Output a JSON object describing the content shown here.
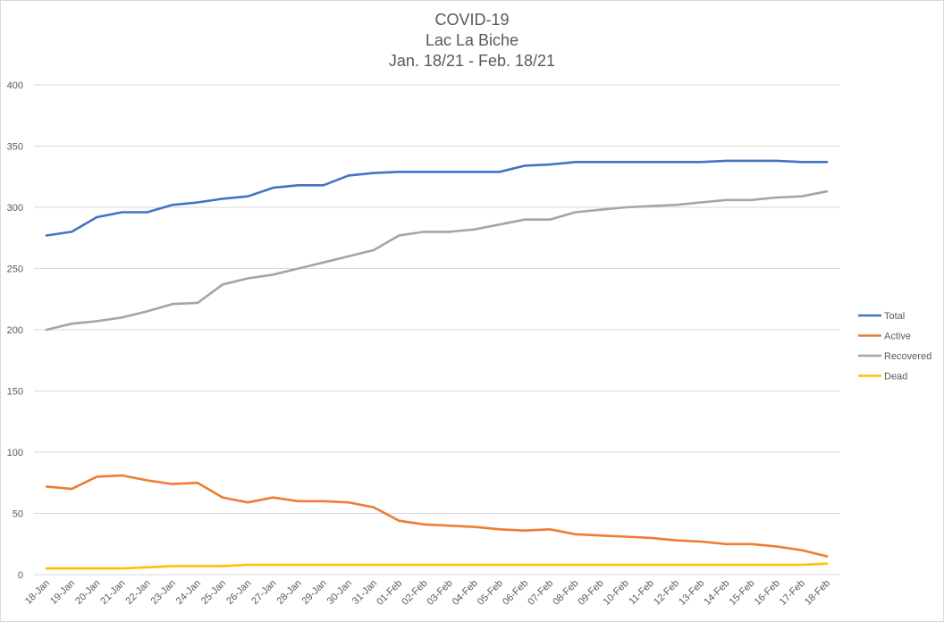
{
  "chart_data": {
    "type": "line",
    "title": [
      "COVID-19",
      "Lac La Biche",
      "Jan. 18/21 - Feb. 18/21"
    ],
    "xlabel": "",
    "ylabel": "",
    "ylim": [
      0,
      400
    ],
    "yticks": [
      "0",
      "50",
      "100",
      "150",
      "200",
      "250",
      "300",
      "350",
      "400"
    ],
    "grid": true,
    "legend_position": "right",
    "categories": [
      "18-Jan",
      "19-Jan",
      "20-Jan",
      "21-Jan",
      "22-Jan",
      "23-Jan",
      "24-Jan",
      "25-Jan",
      "26-Jan",
      "27-Jan",
      "28-Jan",
      "29-Jan",
      "30-Jan",
      "31-Jan",
      "01-Feb",
      "02-Feb",
      "03-Feb",
      "04-Feb",
      "05-Feb",
      "06-Feb",
      "07-Feb",
      "08-Feb",
      "09-Feb",
      "10-Feb",
      "11-Feb",
      "12-Feb",
      "13-Feb",
      "14-Feb",
      "15-Feb",
      "16-Feb",
      "17-Feb",
      "18-Feb"
    ],
    "series": [
      {
        "name": "Total",
        "color": "#4472c4",
        "values": [
          277,
          280,
          292,
          296,
          296,
          302,
          304,
          307,
          309,
          316,
          318,
          318,
          326,
          328,
          329,
          329,
          329,
          329,
          329,
          334,
          335,
          337,
          337,
          337,
          337,
          337,
          337,
          338,
          338,
          338,
          337,
          337
        ]
      },
      {
        "name": "Active",
        "color": "#ed7d31",
        "values": [
          72,
          70,
          80,
          81,
          77,
          74,
          75,
          63,
          59,
          63,
          60,
          60,
          59,
          55,
          44,
          41,
          40,
          39,
          37,
          36,
          37,
          33,
          32,
          31,
          30,
          28,
          27,
          25,
          25,
          23,
          20,
          15
        ]
      },
      {
        "name": "Recovered",
        "color": "#a5a5a5",
        "values": [
          200,
          205,
          207,
          210,
          215,
          221,
          222,
          237,
          242,
          245,
          250,
          255,
          260,
          265,
          277,
          280,
          280,
          282,
          286,
          290,
          290,
          296,
          298,
          300,
          301,
          302,
          304,
          306,
          306,
          308,
          309,
          313
        ]
      },
      {
        "name": "Dead",
        "color": "#ffc000",
        "values": [
          5,
          5,
          5,
          5,
          6,
          7,
          7,
          7,
          8,
          8,
          8,
          8,
          8,
          8,
          8,
          8,
          8,
          8,
          8,
          8,
          8,
          8,
          8,
          8,
          8,
          8,
          8,
          8,
          8,
          8,
          8,
          9
        ]
      }
    ]
  }
}
